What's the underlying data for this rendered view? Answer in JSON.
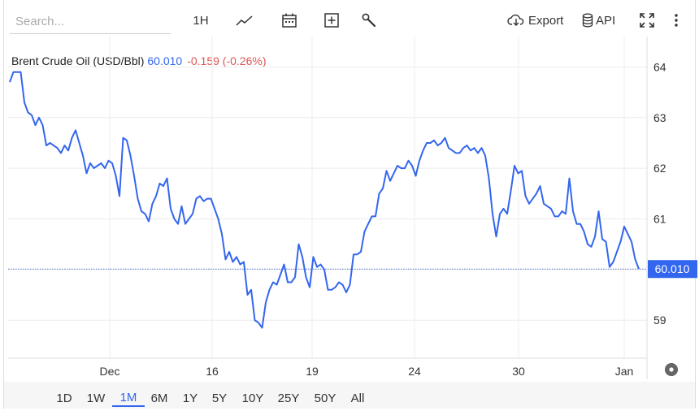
{
  "search": {
    "placeholder": "Search..."
  },
  "toolbar": {
    "interval_label": "1H",
    "export_label": "Export",
    "api_label": "API",
    "icons": [
      "line-chart-icon",
      "calendar-icon",
      "plus-box-icon",
      "wrench-icon",
      "cloud-download-icon",
      "database-icon",
      "fullscreen-icon",
      "kebab-menu-icon"
    ]
  },
  "legend": {
    "name": "Brent Crude Oil (USD/Bbl)",
    "price": "60.010",
    "change": "-0.159 (-0.26%)"
  },
  "price_tag": "60.010",
  "ranges": [
    "1D",
    "1W",
    "1M",
    "6M",
    "1Y",
    "5Y",
    "10Y",
    "25Y",
    "50Y",
    "All"
  ],
  "active_range": "1M",
  "colors": {
    "line": "#3366ee",
    "change": "#e05555",
    "grid": "#ececec"
  },
  "chart_data": {
    "type": "line",
    "x_labels": [
      "Dec",
      "16",
      "19",
      "24",
      "30",
      "Jan"
    ],
    "y_ticks": [
      59,
      60,
      61,
      62,
      63,
      64
    ],
    "ylim": [
      58.25,
      64.6
    ],
    "grid": true,
    "last_value": 60.01,
    "series": [
      {
        "values": [
          63.7,
          63.9,
          63.9,
          63.9,
          63.3,
          63.1,
          63.05,
          62.85,
          63.0,
          62.85,
          62.45,
          62.5,
          62.45,
          62.4,
          62.3,
          62.45,
          62.35,
          62.6,
          62.75,
          62.5,
          62.25,
          61.9,
          62.1,
          62.0,
          62.05,
          62.1,
          62.0,
          62.15,
          62.1,
          61.85,
          61.45,
          62.6,
          62.55,
          62.25,
          61.85,
          61.4,
          61.15,
          61.1,
          60.95,
          61.3,
          61.45,
          61.7,
          61.65,
          61.8,
          61.2,
          61.0,
          60.9,
          61.25,
          60.9,
          61.0,
          61.1,
          61.4,
          61.45,
          61.35,
          61.4,
          61.4,
          61.2,
          61.0,
          60.7,
          60.2,
          60.35,
          60.15,
          60.25,
          60.1,
          60.15,
          59.5,
          59.6,
          59.0,
          58.95,
          58.85,
          59.35,
          59.6,
          59.75,
          59.7,
          59.9,
          60.1,
          59.75,
          59.75,
          59.85,
          60.5,
          60.25,
          59.85,
          59.65,
          60.25,
          60.05,
          60.1,
          60.0,
          59.6,
          59.6,
          59.65,
          59.75,
          59.7,
          59.55,
          59.7,
          60.3,
          60.3,
          60.35,
          60.75,
          60.9,
          61.05,
          61.05,
          61.5,
          61.6,
          61.95,
          61.75,
          61.9,
          62.05,
          62.0,
          62.0,
          62.15,
          62.05,
          61.85,
          62.15,
          62.35,
          62.5,
          62.5,
          62.55,
          62.45,
          62.5,
          62.6,
          62.4,
          62.35,
          62.3,
          62.3,
          62.4,
          62.45,
          62.35,
          62.4,
          62.3,
          62.4,
          62.25,
          61.8,
          61.1,
          60.65,
          61.1,
          61.2,
          61.1,
          61.55,
          62.05,
          61.9,
          61.95,
          61.45,
          61.3,
          61.4,
          61.5,
          61.65,
          61.3,
          61.25,
          61.2,
          61.05,
          61.05,
          61.15,
          61.1,
          61.8,
          61.15,
          60.9,
          60.9,
          60.75,
          60.5,
          60.45,
          60.65,
          61.15,
          60.6,
          60.55,
          60.05,
          60.15,
          60.35,
          60.55,
          60.85,
          60.7,
          60.55,
          60.2,
          60.01
        ]
      }
    ]
  }
}
